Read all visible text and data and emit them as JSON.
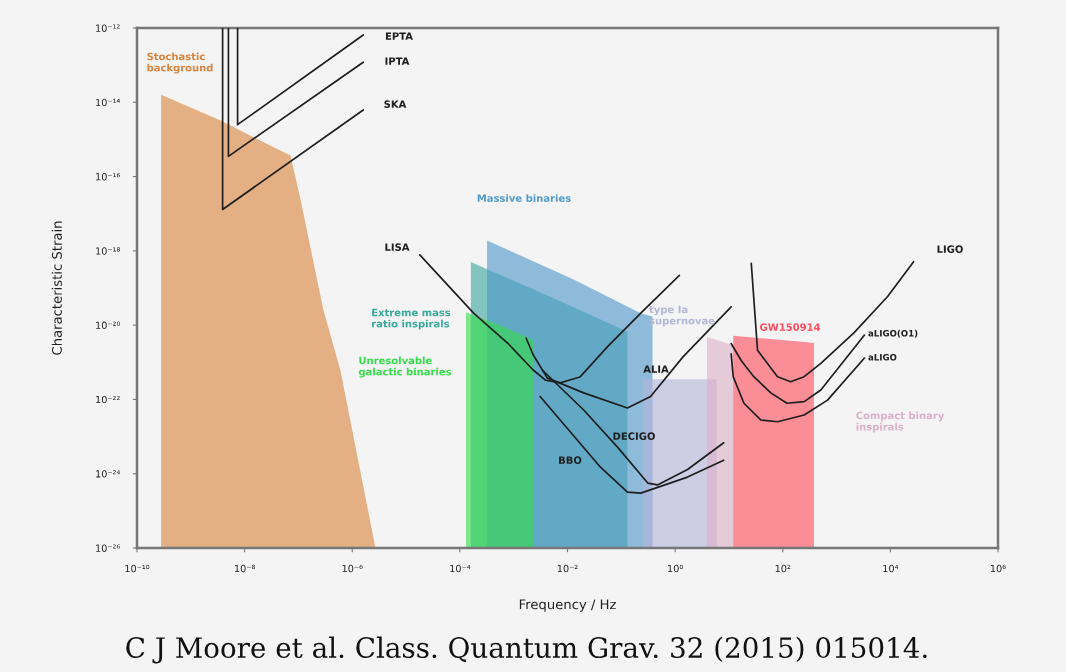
{
  "chart_data": {
    "type": "line",
    "xlabel": "Frequency / Hz",
    "ylabel": "Characteristic Strain",
    "log": "xy",
    "xlim": [
      1e-10,
      1000000.0
    ],
    "ylim": [
      1e-26,
      1e-12
    ],
    "xticks": [
      {
        "value": 1e-10,
        "label": "10⁻¹⁰"
      },
      {
        "value": 1e-08,
        "label": "10⁻⁸"
      },
      {
        "value": 1e-06,
        "label": "10⁻⁶"
      },
      {
        "value": 0.0001,
        "label": "10⁻⁴"
      },
      {
        "value": 0.01,
        "label": "10⁻²"
      },
      {
        "value": 1,
        "label": "10⁰"
      },
      {
        "value": 100.0,
        "label": "10²"
      },
      {
        "value": 10000.0,
        "label": "10⁴"
      },
      {
        "value": 1000000.0,
        "label": "10⁶"
      }
    ],
    "yticks": [
      {
        "value": 1e-26,
        "label": "10⁻²⁶"
      },
      {
        "value": 1e-24,
        "label": "10⁻²⁴"
      },
      {
        "value": 1e-22,
        "label": "10⁻²²"
      },
      {
        "value": 1e-20,
        "label": "10⁻²⁰"
      },
      {
        "value": 1e-18,
        "label": "10⁻¹⁸"
      },
      {
        "value": 1e-16,
        "label": "10⁻¹⁶"
      },
      {
        "value": 1e-14,
        "label": "10⁻¹⁴"
      },
      {
        "value": 1e-12,
        "label": "10⁻¹²"
      }
    ],
    "series": [
      {
        "type": "area",
        "name": "Stochastic\nbackground",
        "color": "#d9843e",
        "x": [
          2.8e-10,
          3.5e-09,
          2.2e-08,
          7.1e-08,
          1.1e-07,
          2.9e-07,
          6e-07,
          2.7e-06
        ],
        "values": [
          1.6e-14,
          3.3e-15,
          8.5e-16,
          3.7e-16,
          2.3e-17,
          2.6e-20,
          6.2e-22,
          1e-26
        ]
      },
      {
        "type": "area",
        "name": "Extreme mass\nratio inspirals",
        "color": "#3aa89c",
        "x": [
          0.00016,
          0.0048,
          0.13
        ],
        "values": [
          5e-19,
          5.8e-20,
          6.6e-21
        ]
      },
      {
        "type": "area",
        "name": "Massive binaries",
        "color": "#4f98c9",
        "x": [
          0.00032,
          0.013,
          0.23,
          0.38
        ],
        "values": [
          1.9e-18,
          1.7e-19,
          2.1e-20,
          1.7e-20
        ]
      },
      {
        "type": "area",
        "name": "Unresolvable\ngalactic binaries",
        "color": "#33dd48",
        "x": [
          0.00013,
          0.00056,
          0.0017,
          0.0023
        ],
        "values": [
          2.2e-20,
          1e-20,
          4.8e-21,
          4e-21
        ]
      },
      {
        "type": "area",
        "name": "type Ia\nsupernovae",
        "color": "#b4b4da",
        "x": [
          0.25,
          5.9
        ],
        "values": [
          3.5e-22,
          3.5e-22
        ]
      },
      {
        "type": "area",
        "name": "Compact binary\ninspirals",
        "color": "#dcb0c6",
        "x": [
          3.9,
          12
        ],
        "values": [
          4.8e-21,
          2.9e-21
        ]
      },
      {
        "type": "area",
        "name": "GW150914",
        "color": "#ff4d5e",
        "x": [
          12,
          250,
          380
        ],
        "values": [
          5.2e-21,
          3.5e-21,
          3.3e-21
        ]
      },
      {
        "name": "EPTA",
        "color": "#1e1e1e",
        "x": [
          7.4e-09,
          7.4e-09,
          1.6e-06
        ],
        "values": [
          1e-12,
          2.5e-15,
          6.5e-13
        ]
      },
      {
        "name": "IPTA",
        "color": "#1e1e1e",
        "x": [
          5e-09,
          5e-09,
          1.6e-06
        ],
        "values": [
          1e-12,
          3.5e-16,
          1.2e-13
        ]
      },
      {
        "name": "SKA",
        "color": "#1e1e1e",
        "x": [
          3.9e-09,
          3.9e-09,
          1.6e-06
        ],
        "values": [
          1e-12,
          1.3e-17,
          6.2e-15
        ]
      },
      {
        "name": "LISA",
        "color": "#1e1e1e",
        "x": [
          1.8e-05,
          0.00018,
          0.00077,
          0.0023,
          0.0039,
          0.0074,
          0.017,
          0.055,
          0.23,
          1.2
        ],
        "values": [
          7.8e-19,
          2.1e-20,
          3.3e-21,
          6.2e-22,
          3.3e-22,
          2.8e-22,
          4e-22,
          2.6e-21,
          2.1e-20,
          2.2e-19
        ]
      },
      {
        "name": "ALIA",
        "color": "#1e1e1e",
        "x": [
          0.0017,
          0.0023,
          0.0042,
          0.02,
          0.13,
          0.35,
          1.4,
          11
        ],
        "values": [
          4.5e-21,
          1.6e-21,
          3.8e-22,
          1.5e-22,
          5.9e-23,
          1.2e-22,
          1.4e-21,
          3.1e-20
        ]
      },
      {
        "name": "DECIGO",
        "color": "#1e1e1e",
        "x": [
          0.0034,
          0.02,
          0.085,
          0.31,
          0.47,
          1.7,
          8.0
        ],
        "values": [
          6.2e-22,
          5.2e-23,
          5.2e-24,
          5.6e-25,
          5e-25,
          1.3e-24,
          6.8e-24
        ]
      },
      {
        "name": "BBO",
        "color": "#1e1e1e",
        "x": [
          0.0031,
          0.041,
          0.13,
          0.23,
          1.7,
          8.0
        ],
        "values": [
          1.2e-22,
          1.5e-24,
          3.2e-25,
          3e-25,
          8.1e-25,
          2.3e-24
        ]
      },
      {
        "name": "LIGO",
        "color": "#1e1e1e",
        "x": [
          26,
          34,
          52,
          80,
          140,
          250,
          510,
          2100,
          8900,
          27000
        ],
        "values": [
          4.6e-19,
          2.1e-21,
          9.3e-22,
          4.1e-22,
          3e-22,
          4.1e-22,
          9.3e-22,
          6.2e-21,
          5.9e-20,
          5.1e-19
        ]
      },
      {
        "name": "aLIGO(O1)",
        "color": "#1e1e1e",
        "x": [
          11,
          17,
          29,
          60,
          120,
          250,
          510,
          3300
        ],
        "values": [
          3.2e-21,
          1.1e-21,
          4.1e-22,
          1.5e-22,
          7.9e-23,
          8.7e-23,
          1.8e-22,
          5.4e-21
        ]
      },
      {
        "name": "aLIGO",
        "color": "#1e1e1e",
        "x": [
          11,
          12,
          19,
          39,
          80,
          250,
          680,
          3300
        ],
        "values": [
          1.7e-21,
          4.1e-22,
          7.9e-23,
          2.8e-23,
          2.5e-23,
          3.8e-23,
          9.6e-23,
          1.3e-21
        ]
      }
    ],
    "annotations": [
      "C J Moore et al. Class. Quantum Grav. 32 (2015) 015014."
    ]
  }
}
